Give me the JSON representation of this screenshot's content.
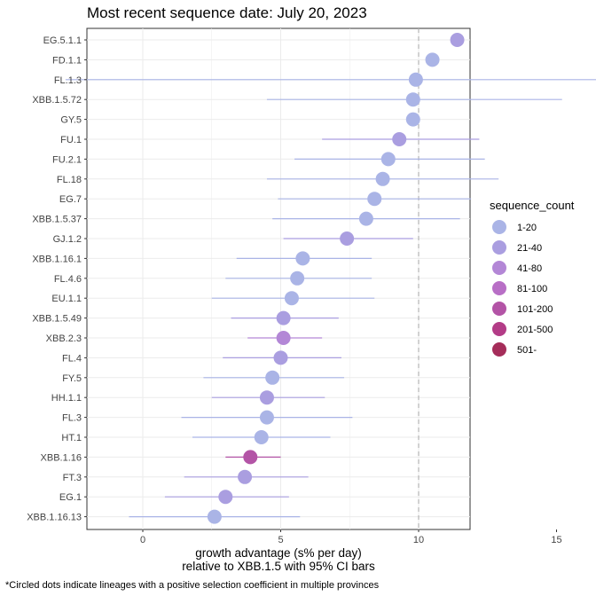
{
  "chart_data": {
    "type": "scatter",
    "title": "Most recent sequence date: July 20, 2023",
    "xlabel_line1": "growth advantage (s% per day)",
    "xlabel_line2": "relative to  XBB.1.5  with 95% CI bars",
    "x_ticks": [
      0,
      5,
      10,
      15
    ],
    "xlim": [
      -4,
      24
    ],
    "reference_line_x": 10,
    "caption": "*Circled dots indicate lineages with a positive selection coefficient in multiple provinces",
    "legend": {
      "title": "sequence_count",
      "items": [
        {
          "label": "1-20",
          "color": "#aab4e6"
        },
        {
          "label": "21-40",
          "color": "#aa9ee0"
        },
        {
          "label": "41-80",
          "color": "#b387d6"
        },
        {
          "label": "81-100",
          "color": "#b86fc6"
        },
        {
          "label": "101-200",
          "color": "#b354a6"
        },
        {
          "label": "201-500",
          "color": "#b33c87"
        },
        {
          "label": "501-",
          "color": "#a52d5a"
        }
      ]
    },
    "points": [
      {
        "lineage": "EG.5.1.1",
        "value": 11.4,
        "ci": null,
        "count_bin": "21-40"
      },
      {
        "lineage": "FD.1.1",
        "value": 10.5,
        "ci": null,
        "count_bin": "1-20"
      },
      {
        "lineage": "FL.1.3",
        "value": 9.9,
        "ci": [
          -2.8,
          22.5
        ],
        "count_bin": "1-20"
      },
      {
        "lineage": "XBB.1.5.72",
        "value": 9.8,
        "ci": [
          4.5,
          15.2
        ],
        "count_bin": "1-20"
      },
      {
        "lineage": "GY.5",
        "value": 9.8,
        "ci": null,
        "count_bin": "1-20"
      },
      {
        "lineage": "FU.1",
        "value": 9.3,
        "ci": [
          6.5,
          12.2
        ],
        "count_bin": "21-40"
      },
      {
        "lineage": "FU.2.1",
        "value": 8.9,
        "ci": [
          5.5,
          12.4
        ],
        "count_bin": "1-20"
      },
      {
        "lineage": "FL.18",
        "value": 8.7,
        "ci": [
          4.5,
          12.9
        ],
        "count_bin": "1-20"
      },
      {
        "lineage": "EG.7",
        "value": 8.4,
        "ci": [
          4.9,
          11.9
        ],
        "count_bin": "1-20"
      },
      {
        "lineage": "XBB.1.5.37",
        "value": 8.1,
        "ci": [
          4.7,
          11.5
        ],
        "count_bin": "1-20"
      },
      {
        "lineage": "GJ.1.2",
        "value": 7.4,
        "ci": [
          5.1,
          9.8
        ],
        "count_bin": "21-40"
      },
      {
        "lineage": "XBB.1.16.1",
        "value": 5.8,
        "ci": [
          3.4,
          8.3
        ],
        "count_bin": "1-20"
      },
      {
        "lineage": "FL.4.6",
        "value": 5.6,
        "ci": [
          3.0,
          8.3
        ],
        "count_bin": "1-20"
      },
      {
        "lineage": "EU.1.1",
        "value": 5.4,
        "ci": [
          2.5,
          8.4
        ],
        "count_bin": "1-20"
      },
      {
        "lineage": "XBB.1.5.49",
        "value": 5.1,
        "ci": [
          3.2,
          7.1
        ],
        "count_bin": "21-40"
      },
      {
        "lineage": "XBB.2.3",
        "value": 5.1,
        "ci": [
          3.8,
          6.5
        ],
        "count_bin": "41-80"
      },
      {
        "lineage": "FL.4",
        "value": 5.0,
        "ci": [
          2.9,
          7.2
        ],
        "count_bin": "21-40"
      },
      {
        "lineage": "FY.5",
        "value": 4.7,
        "ci": [
          2.2,
          7.3
        ],
        "count_bin": "1-20"
      },
      {
        "lineage": "HH.1.1",
        "value": 4.5,
        "ci": [
          2.5,
          6.6
        ],
        "count_bin": "21-40"
      },
      {
        "lineage": "FL.3",
        "value": 4.5,
        "ci": [
          1.4,
          7.6
        ],
        "count_bin": "1-20"
      },
      {
        "lineage": "HT.1",
        "value": 4.3,
        "ci": [
          1.8,
          6.8
        ],
        "count_bin": "1-20"
      },
      {
        "lineage": "XBB.1.16",
        "value": 3.9,
        "ci": [
          3.0,
          5.0
        ],
        "count_bin": "101-200"
      },
      {
        "lineage": "FT.3",
        "value": 3.7,
        "ci": [
          1.5,
          6.0
        ],
        "count_bin": "21-40"
      },
      {
        "lineage": "EG.1",
        "value": 3.0,
        "ci": [
          0.8,
          5.3
        ],
        "count_bin": "21-40"
      },
      {
        "lineage": "XBB.1.16.13",
        "value": 2.6,
        "ci": [
          -0.5,
          5.7
        ],
        "count_bin": "1-20"
      }
    ]
  }
}
